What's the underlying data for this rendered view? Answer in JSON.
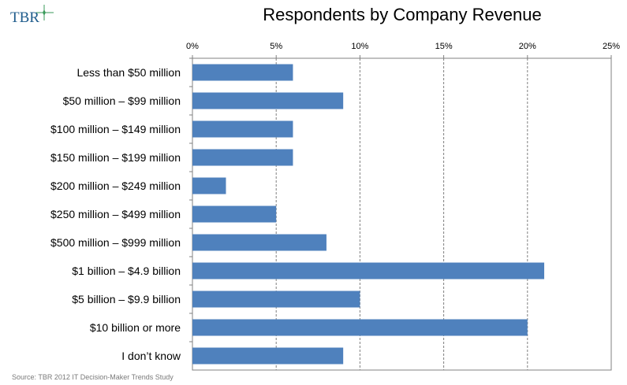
{
  "logo": {
    "text": "TBR"
  },
  "chart_data": {
    "type": "bar",
    "orientation": "horizontal",
    "title": "Respondents by Company Revenue",
    "categories": [
      "Less than $50 million",
      "$50 million – $99 million",
      "$100 million – $149 million",
      "$150 million – $199 million",
      "$200 million – $249 million",
      "$250 million – $499 million",
      "$500 million – $999 million",
      "$1 billion – $4.9 billion",
      "$5 billion – $9.9 billion",
      "$10 billion or more",
      "I don’t know"
    ],
    "values": [
      6,
      9,
      6,
      6,
      2,
      5,
      8,
      21,
      10,
      20,
      9
    ],
    "value_unit": "%",
    "xlim": [
      0,
      25
    ],
    "x_ticks": [
      "0%",
      "5%",
      "10%",
      "15%",
      "20%",
      "25%"
    ],
    "x_axis_position": "top",
    "gridlines": "vertical dashed",
    "bar_color": "#4f81bd",
    "legend": "none"
  },
  "source": "Source: TBR 2012 IT Decision-Maker Trends Study"
}
